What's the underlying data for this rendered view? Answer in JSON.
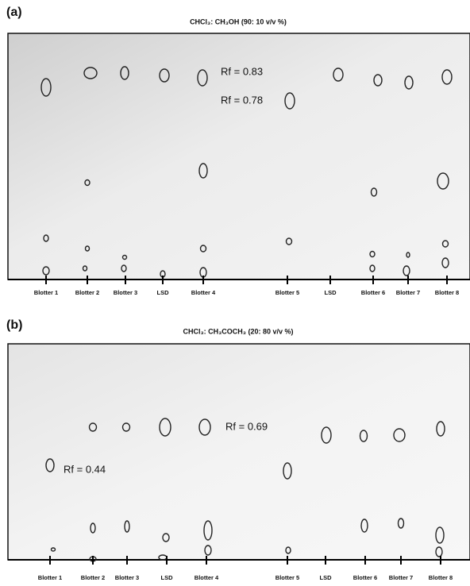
{
  "panels": [
    {
      "label": "(a)",
      "title": "CHCl₃: CH₃OH (90: 10 v/v %)",
      "annotations": [
        "Rf = 0.83",
        "Rf = 0.78"
      ],
      "lanes": [
        "Blotter 1",
        "Blotter 2",
        "Blotter 3",
        "LSD",
        "Blotter 4",
        "Blotter 5",
        "LSD",
        "Blotter 6",
        "Blotter 7",
        "Blotter 8"
      ]
    },
    {
      "label": "(b)",
      "title": "CHCl₃: CH₃COCH₃ (20: 80  v/v %)",
      "annotations": [
        "Rf = 0.69",
        "Rf = 0.44"
      ],
      "lanes": [
        "Blotter 1",
        "Blotter 2",
        "Blotter 3",
        "LSD",
        "Blotter 4",
        "Blotter 5",
        "LSD",
        "Blotter 6",
        "Blotter 7",
        "Blotter 8"
      ]
    }
  ]
}
